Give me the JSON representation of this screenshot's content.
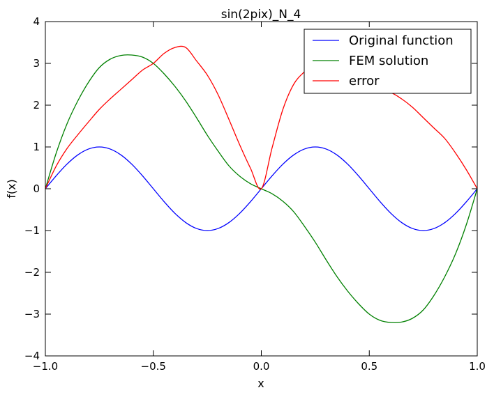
{
  "chart_data": {
    "type": "line",
    "title": "sin(2pix)_N_4",
    "xlabel": "x",
    "ylabel": "f(x)",
    "xlim": [
      -1.0,
      1.0
    ],
    "ylim": [
      -4,
      4
    ],
    "xticks": [
      -1.0,
      -0.5,
      0.0,
      0.5,
      1.0
    ],
    "xtick_labels": [
      "−1.0",
      "−0.5",
      "0.0",
      "0.5",
      "1.0"
    ],
    "yticks": [
      -4,
      -3,
      -2,
      -1,
      0,
      1,
      2,
      3,
      4
    ],
    "ytick_labels": [
      "−4",
      "−3",
      "−2",
      "−1",
      "0",
      "1",
      "2",
      "3",
      "4"
    ],
    "grid": false,
    "legend_position": "top-right",
    "series": [
      {
        "name": "Original function",
        "color": "#0000ff",
        "x": [
          -1.0,
          -0.95,
          -0.9,
          -0.85,
          -0.8,
          -0.75,
          -0.7,
          -0.65,
          -0.6,
          -0.55,
          -0.5,
          -0.45,
          -0.4,
          -0.35,
          -0.3,
          -0.25,
          -0.2,
          -0.15,
          -0.1,
          -0.05,
          0.0,
          0.05,
          0.1,
          0.15,
          0.2,
          0.25,
          0.3,
          0.35,
          0.4,
          0.45,
          0.5,
          0.55,
          0.6,
          0.65,
          0.7,
          0.75,
          0.8,
          0.85,
          0.9,
          0.95,
          1.0
        ],
        "y": [
          0.0,
          0.309,
          0.588,
          0.809,
          0.951,
          1.0,
          0.951,
          0.809,
          0.588,
          0.309,
          0.0,
          -0.309,
          -0.588,
          -0.809,
          -0.951,
          -1.0,
          -0.951,
          -0.809,
          -0.588,
          -0.309,
          0.0,
          0.309,
          0.588,
          0.809,
          0.951,
          1.0,
          0.951,
          0.809,
          0.588,
          0.309,
          0.0,
          -0.309,
          -0.588,
          -0.809,
          -0.951,
          -1.0,
          -0.951,
          -0.809,
          -0.588,
          -0.309,
          0.0
        ]
      },
      {
        "name": "FEM solution",
        "color": "#008000",
        "x": [
          -1.0,
          -0.95,
          -0.9,
          -0.85,
          -0.8,
          -0.75,
          -0.7,
          -0.65,
          -0.6,
          -0.55,
          -0.5,
          -0.45,
          -0.4,
          -0.35,
          -0.3,
          -0.25,
          -0.2,
          -0.15,
          -0.1,
          -0.05,
          0.0,
          0.05,
          0.1,
          0.15,
          0.2,
          0.25,
          0.3,
          0.35,
          0.4,
          0.45,
          0.5,
          0.55,
          0.6,
          0.65,
          0.7,
          0.75,
          0.8,
          0.85,
          0.9,
          0.95,
          1.0
        ],
        "y": [
          0.0,
          0.85,
          1.55,
          2.1,
          2.55,
          2.9,
          3.1,
          3.19,
          3.2,
          3.15,
          3.0,
          2.75,
          2.45,
          2.1,
          1.7,
          1.28,
          0.9,
          0.55,
          0.3,
          0.12,
          0.0,
          -0.12,
          -0.3,
          -0.55,
          -0.9,
          -1.28,
          -1.7,
          -2.1,
          -2.45,
          -2.75,
          -3.0,
          -3.15,
          -3.2,
          -3.19,
          -3.1,
          -2.9,
          -2.55,
          -2.1,
          -1.55,
          -0.85,
          0.0
        ]
      },
      {
        "name": "error",
        "color": "#ff0000",
        "x": [
          -1.0,
          -0.95,
          -0.9,
          -0.85,
          -0.8,
          -0.75,
          -0.7,
          -0.65,
          -0.6,
          -0.55,
          -0.5,
          -0.45,
          -0.4,
          -0.35,
          -0.3,
          -0.25,
          -0.2,
          -0.15,
          -0.1,
          -0.05,
          0.0,
          0.05,
          0.1,
          0.15,
          0.2,
          0.25,
          0.3,
          0.35,
          0.4,
          0.45,
          0.5,
          0.55,
          0.6,
          0.65,
          0.7,
          0.75,
          0.8,
          0.85,
          0.9,
          0.95,
          1.0
        ],
        "y": [
          0.0,
          0.54,
          0.96,
          1.29,
          1.6,
          1.9,
          2.15,
          2.38,
          2.61,
          2.84,
          3.0,
          3.24,
          3.38,
          3.38,
          3.06,
          2.72,
          2.25,
          1.66,
          1.05,
          0.49,
          0.0,
          0.98,
          1.9,
          2.5,
          2.8,
          3.0,
          3.05,
          3.0,
          2.85,
          2.65,
          2.4,
          2.33,
          2.3,
          2.15,
          1.95,
          1.7,
          1.45,
          1.2,
          0.85,
          0.45,
          0.0
        ]
      }
    ]
  }
}
